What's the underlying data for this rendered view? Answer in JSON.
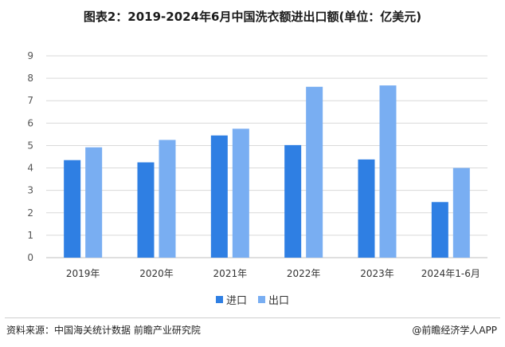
{
  "title": "图表2：2019-2024年6月中国洗衣额进出口额(单位：亿美元)",
  "source": "资料来源：中国海关统计数据 前瞻产业研究院",
  "brand": "@前瞻经济学人APP",
  "colors": {
    "import": "#2f7fe3",
    "export": "#79aef2",
    "grid": "#d9d9d9",
    "axis": "#555555"
  },
  "chart_data": {
    "type": "bar",
    "categories": [
      "2019年",
      "2020年",
      "2021年",
      "2022年",
      "2023年",
      "2024年1-6月"
    ],
    "series": [
      {
        "name": "进口",
        "values": [
          4.35,
          4.25,
          5.45,
          5.02,
          4.38,
          2.48
        ]
      },
      {
        "name": "出口",
        "values": [
          4.92,
          5.25,
          5.75,
          7.62,
          7.68,
          4.0
        ]
      }
    ],
    "xlabel": "",
    "ylabel": "",
    "ylim": [
      0,
      9
    ],
    "yticks": [
      0,
      1,
      2,
      3,
      4,
      5,
      6,
      7,
      8,
      9
    ],
    "grid": true,
    "legend": "bottom-center"
  }
}
